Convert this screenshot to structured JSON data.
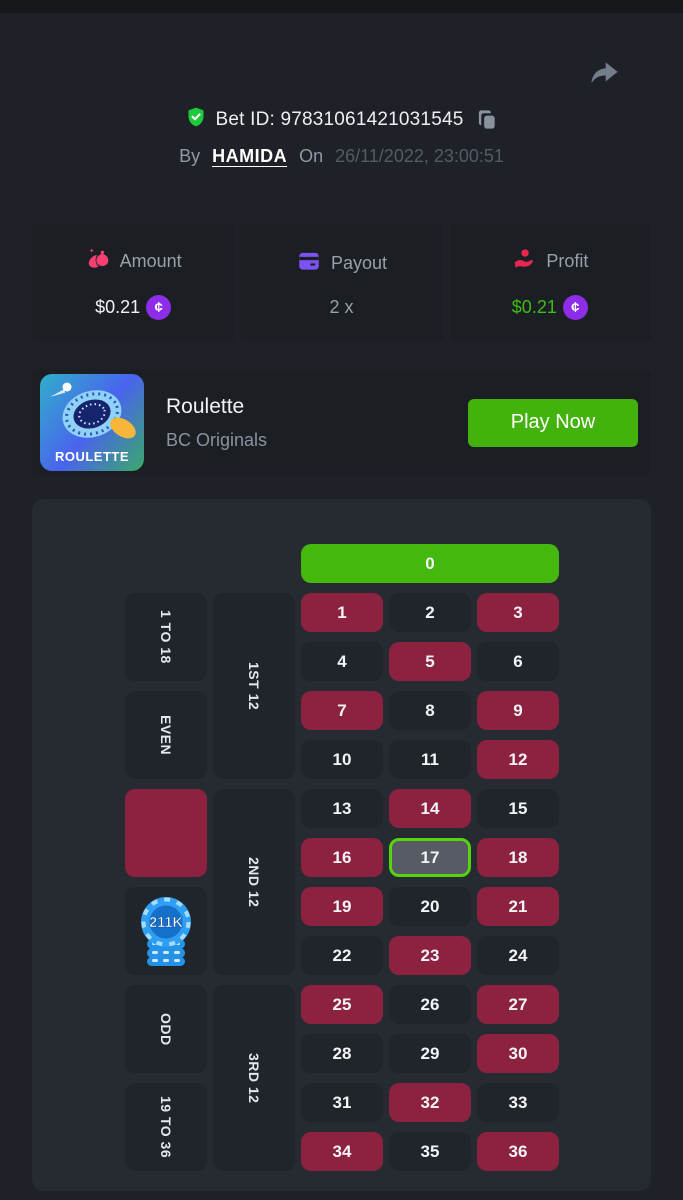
{
  "header": {
    "bet_id": "Bet ID: 97831061421031545",
    "by_label": "By",
    "username": "HAMIDA",
    "on_label": "On",
    "datetime": "26/11/2022, 23:00:51"
  },
  "stats": {
    "coin_symbol": "¢",
    "amount": {
      "label": "Amount",
      "value": "$0.21"
    },
    "payout": {
      "label": "Payout",
      "value": "2 x"
    },
    "profit": {
      "label": "Profit",
      "value": "$0.21"
    }
  },
  "game": {
    "title": "Roulette",
    "provider": "BC Originals",
    "play_label": "Play Now",
    "tile_text": "ROULETTE"
  },
  "roulette": {
    "zero_label": "0",
    "numbers": [
      1,
      2,
      3,
      4,
      5,
      6,
      7,
      8,
      9,
      10,
      11,
      12,
      13,
      14,
      15,
      16,
      17,
      18,
      19,
      20,
      21,
      22,
      23,
      24,
      25,
      26,
      27,
      28,
      29,
      30,
      31,
      32,
      33,
      34,
      35,
      36
    ],
    "red_numbers": [
      1,
      3,
      5,
      7,
      9,
      12,
      14,
      16,
      18,
      19,
      21,
      23,
      25,
      27,
      30,
      32,
      34,
      36
    ],
    "winning_number": 17,
    "side_bets": {
      "one_to_18": "1 TO 18",
      "even": "EVEN",
      "odd": "ODD",
      "nineteen_to_36": "19 TO 36",
      "first12": "1ST 12",
      "second12": "2ND 12",
      "third12": "3RD 12"
    },
    "chip_value": "211K"
  },
  "colors": {
    "bg": "#1e2127",
    "panel": "#1b1e23",
    "table": "#262a31",
    "cellDark": "#20242b",
    "red": "#8d2140",
    "green": "#45b80e",
    "winBg": "#575b64",
    "winBorder": "#55d40f",
    "playGreen": "#43b20d",
    "purple": "#8d2de8",
    "profitGreen": "#3fbb17",
    "pink": "#f43f72",
    "violet": "#7c53f2",
    "profitRed": "#e8274e",
    "chipBlue": "#2e9ff2",
    "shieldGreen": "#1fc93c"
  }
}
